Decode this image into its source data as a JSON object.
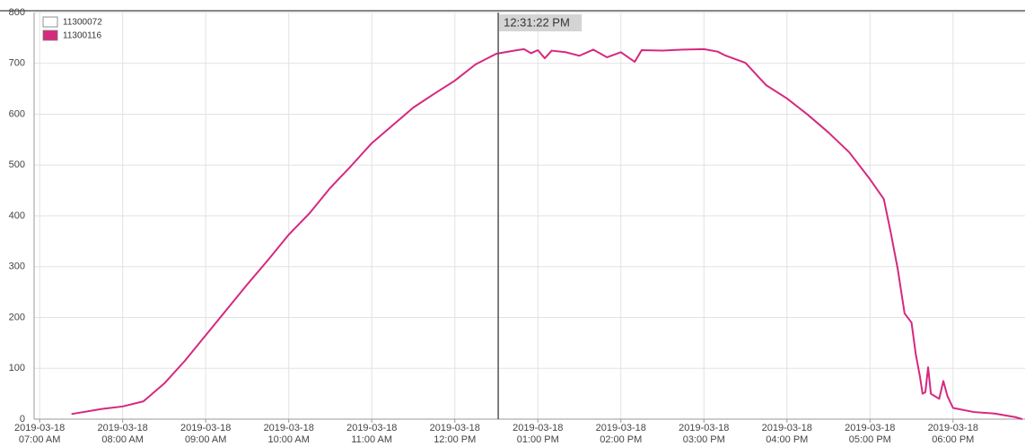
{
  "chart_data": {
    "type": "line",
    "x": [
      "2019-03-18 07:23",
      "2019-03-18 07:45",
      "2019-03-18 08:00",
      "2019-03-18 08:15",
      "2019-03-18 08:30",
      "2019-03-18 08:45",
      "2019-03-18 09:00",
      "2019-03-18 09:15",
      "2019-03-18 09:30",
      "2019-03-18 09:45",
      "2019-03-18 10:00",
      "2019-03-18 10:15",
      "2019-03-18 10:30",
      "2019-03-18 10:45",
      "2019-03-18 11:00",
      "2019-03-18 11:15",
      "2019-03-18 11:30",
      "2019-03-18 11:45",
      "2019-03-18 12:00",
      "2019-03-18 12:15",
      "2019-03-18 12:30",
      "2019-03-18 12:45",
      "2019-03-18 12:50",
      "2019-03-18 12:55",
      "2019-03-18 13:00",
      "2019-03-18 13:05",
      "2019-03-18 13:10",
      "2019-03-18 13:20",
      "2019-03-18 13:30",
      "2019-03-18 13:40",
      "2019-03-18 13:50",
      "2019-03-18 14:00",
      "2019-03-18 14:10",
      "2019-03-18 14:15",
      "2019-03-18 14:30",
      "2019-03-18 14:45",
      "2019-03-18 15:00",
      "2019-03-18 15:10",
      "2019-03-18 15:15",
      "2019-03-18 15:30",
      "2019-03-18 15:45",
      "2019-03-18 16:00",
      "2019-03-18 16:15",
      "2019-03-18 16:30",
      "2019-03-18 16:45",
      "2019-03-18 17:00",
      "2019-03-18 17:10",
      "2019-03-18 17:15",
      "2019-03-18 17:20",
      "2019-03-18 17:25",
      "2019-03-18 17:30",
      "2019-03-18 17:33",
      "2019-03-18 17:36",
      "2019-03-18 17:38",
      "2019-03-18 17:40",
      "2019-03-18 17:42",
      "2019-03-18 17:44",
      "2019-03-18 17:50",
      "2019-03-18 17:53",
      "2019-03-18 17:56",
      "2019-03-18 18:00",
      "2019-03-18 18:15",
      "2019-03-18 18:30",
      "2019-03-18 18:45",
      "2019-03-18 18:50"
    ],
    "series": [
      {
        "name": "11300072",
        "color": "#ffffff",
        "values": [
          null,
          null,
          null,
          null,
          null,
          null,
          null,
          null,
          null,
          null,
          null,
          null,
          null,
          null,
          null,
          null,
          null,
          null,
          null,
          null,
          null,
          null,
          null,
          null,
          null,
          null,
          null,
          null,
          null,
          null,
          null,
          null,
          null,
          null,
          null,
          null,
          null,
          null,
          null,
          null,
          null,
          null,
          null,
          null,
          null,
          null,
          null,
          null,
          null,
          null,
          null,
          null,
          null,
          null,
          null,
          null,
          null,
          null,
          null,
          null,
          null,
          null,
          null,
          null,
          null
        ]
      },
      {
        "name": "11300116",
        "color": "#d6287f",
        "values": [
          10,
          20,
          25,
          35,
          70,
          115,
          165,
          215,
          265,
          313,
          363,
          405,
          455,
          498,
          543,
          578,
          613,
          640,
          666,
          698,
          719,
          726,
          728,
          720,
          726,
          710,
          725,
          722,
          715,
          727,
          712,
          722,
          703,
          726,
          725,
          727,
          728,
          723,
          716,
          701,
          657,
          631,
          599,
          564,
          525,
          472,
          433,
          367,
          296,
          208,
          190,
          129,
          85,
          50,
          53,
          102,
          50,
          40,
          75,
          45,
          22,
          14,
          11,
          4,
          0
        ]
      }
    ],
    "xlim": [
      "2019-03-18 06:56",
      "2019-03-18 18:52"
    ],
    "xticks": [
      {
        "value": "2019-03-18 07:00",
        "label": "2019-03-18 07:00 AM"
      },
      {
        "value": "2019-03-18 08:00",
        "label": "2019-03-18 08:00 AM"
      },
      {
        "value": "2019-03-18 09:00",
        "label": "2019-03-18 09:00 AM"
      },
      {
        "value": "2019-03-18 10:00",
        "label": "2019-03-18 10:00 AM"
      },
      {
        "value": "2019-03-18 11:00",
        "label": "2019-03-18 11:00 AM"
      },
      {
        "value": "2019-03-18 12:00",
        "label": "2019-03-18 12:00 PM"
      },
      {
        "value": "2019-03-18 13:00",
        "label": "2019-03-18 01:00 PM"
      },
      {
        "value": "2019-03-18 14:00",
        "label": "2019-03-18 02:00 PM"
      },
      {
        "value": "2019-03-18 15:00",
        "label": "2019-03-18 03:00 PM"
      },
      {
        "value": "2019-03-18 16:00",
        "label": "2019-03-18 04:00 PM"
      },
      {
        "value": "2019-03-18 17:00",
        "label": "2019-03-18 05:00 PM"
      },
      {
        "value": "2019-03-18 18:00",
        "label": "2019-03-18 06:00 PM"
      }
    ],
    "ylim": [
      0,
      800
    ],
    "yticks": [
      0,
      100,
      200,
      300,
      400,
      500,
      600,
      700,
      800
    ],
    "grid": true,
    "legend": "top-left",
    "cursor": {
      "x": "2019-03-18 12:31:22",
      "label": "12:31:22 PM"
    }
  }
}
